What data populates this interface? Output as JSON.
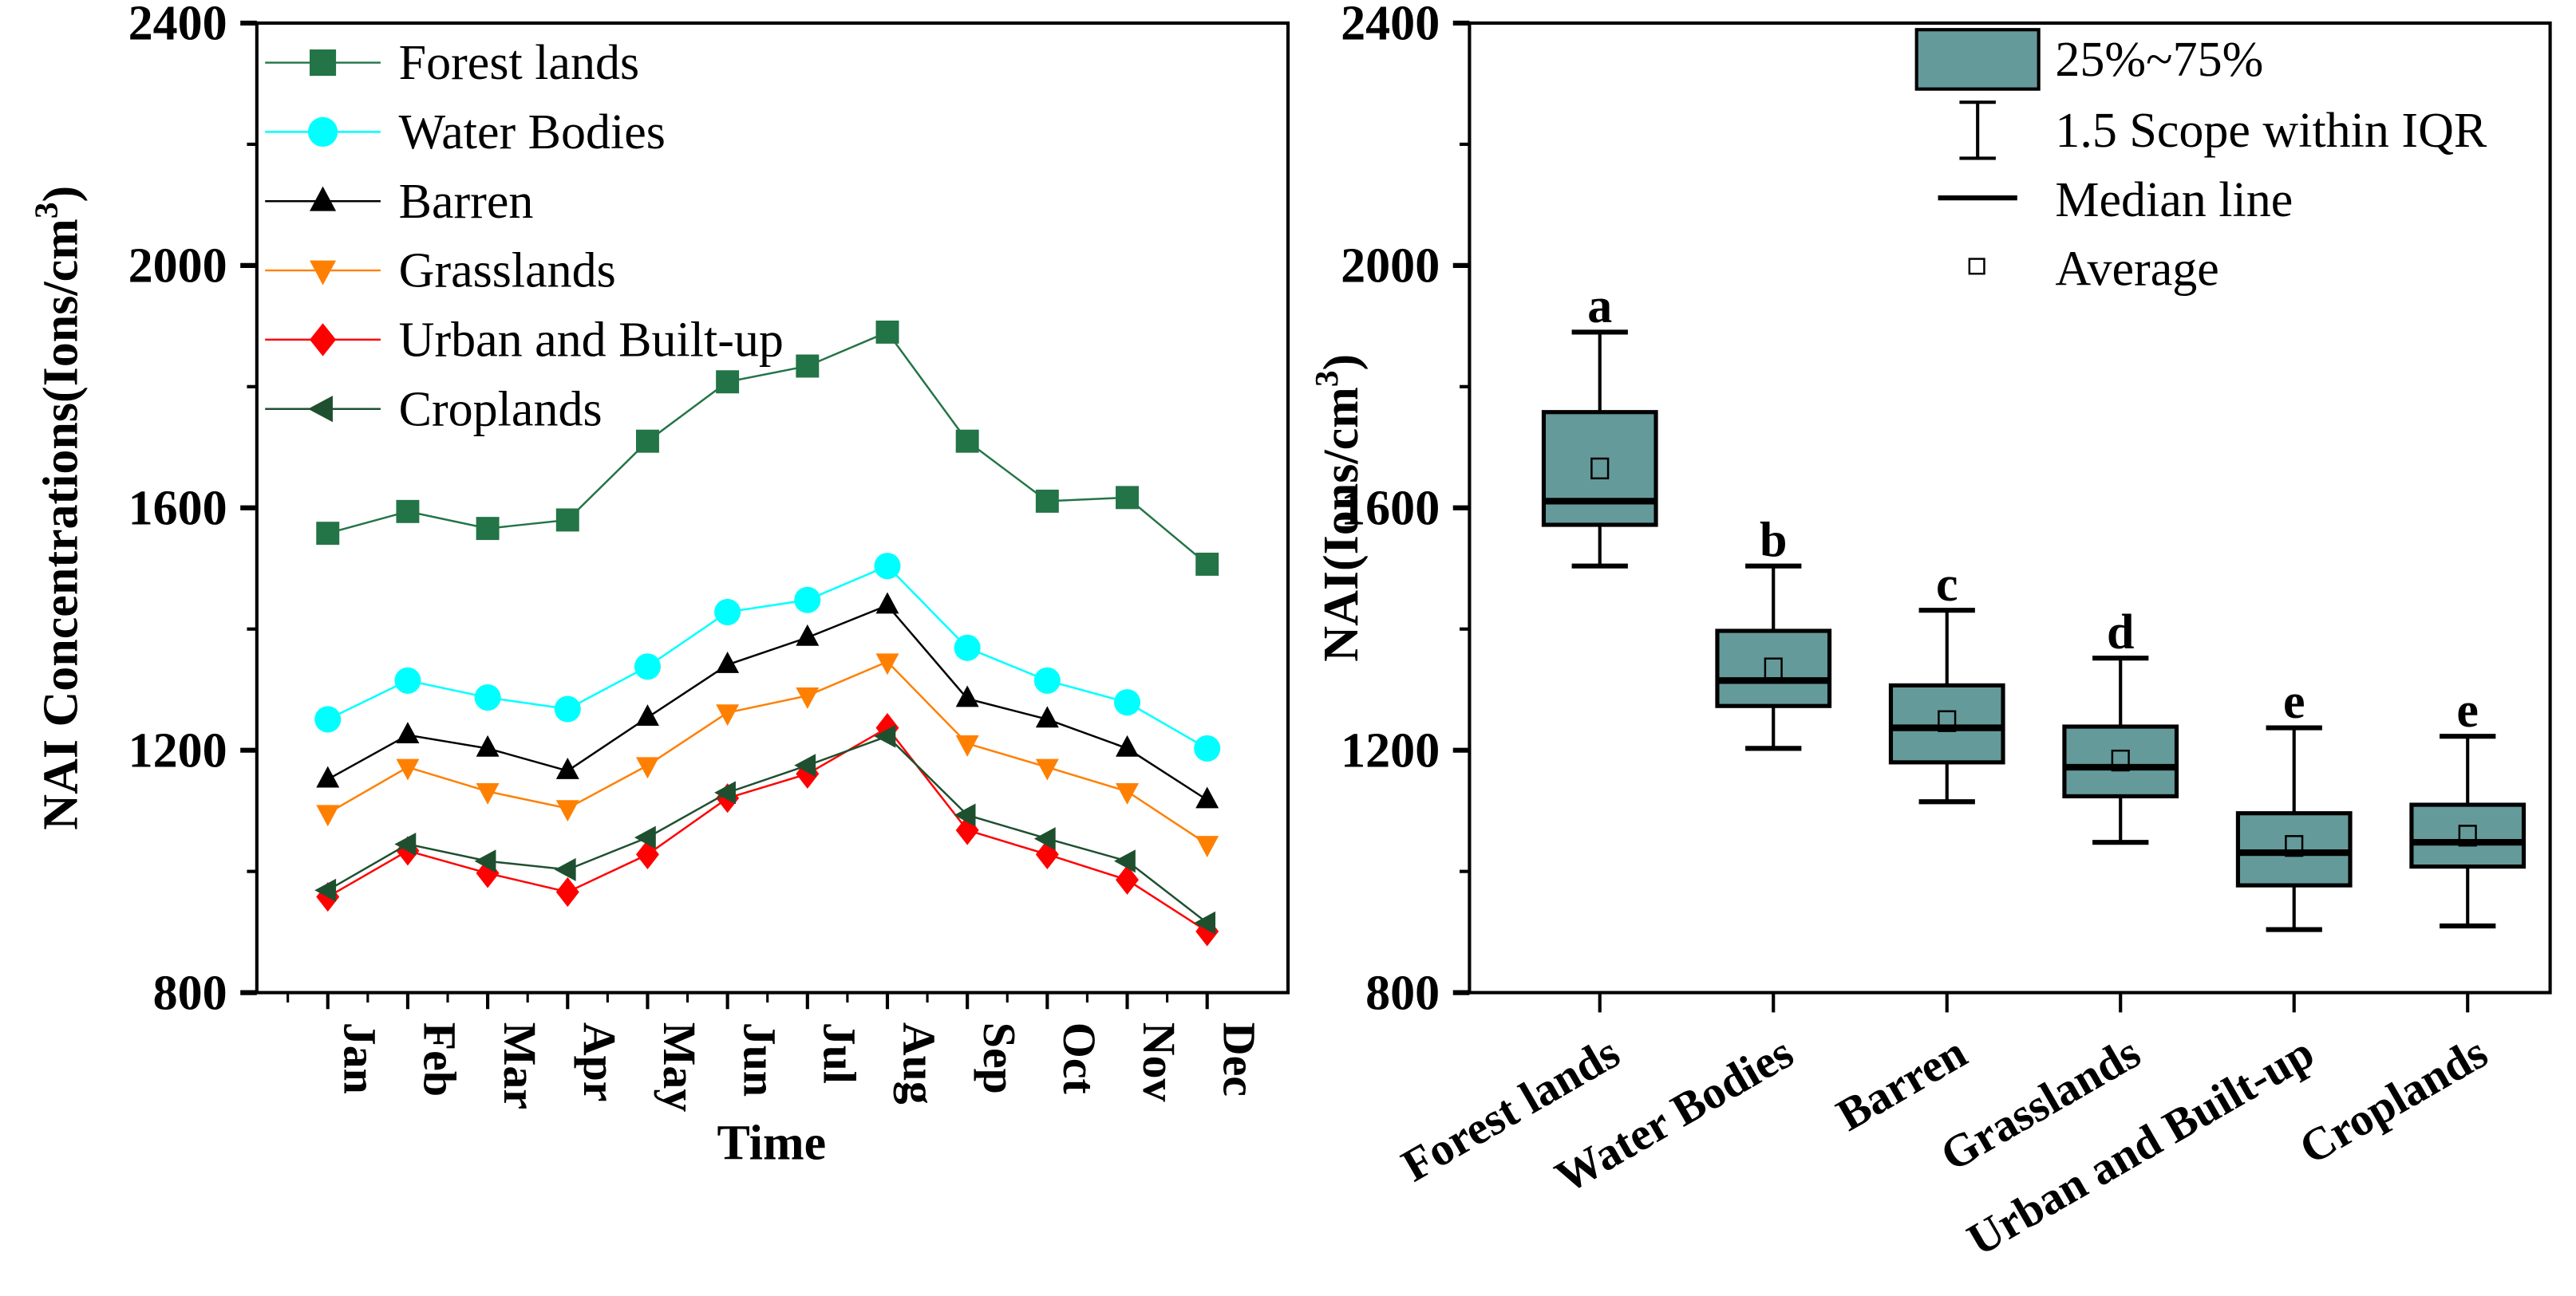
{
  "chart_data": [
    {
      "type": "line",
      "xlabel": "Time",
      "ylabel": "NAI Concentrations(Ions/cm3)",
      "ylabel_main": "NAI Concentrations(Ions/cm",
      "ylabel_sup": "3",
      "ylabel_end": ")",
      "ylim": [
        800,
        2400
      ],
      "yticks": [
        "800",
        "1200",
        "1600",
        "2000",
        "2400"
      ],
      "categories": [
        "Jan",
        "Feb",
        "Mar",
        "Apr",
        "May",
        "Jun",
        "Jul",
        "Aug",
        "Sep",
        "Oct",
        "Nov",
        "Dec"
      ],
      "legend_position": "top-left",
      "series": [
        {
          "name": "Forest lands",
          "color": "#237447",
          "marker": "square",
          "values": [
            1558,
            1594,
            1566,
            1580,
            1710,
            1808,
            1834,
            1890,
            1710,
            1611,
            1617,
            1507
          ]
        },
        {
          "name": "Water Bodies",
          "color": "#00FFFF",
          "marker": "circle",
          "values": [
            1251,
            1315,
            1287,
            1268,
            1338,
            1428,
            1448,
            1504,
            1369,
            1315,
            1279,
            1203
          ]
        },
        {
          "name": "Barren",
          "color": "#000000",
          "marker": "triangle-up",
          "values": [
            1152,
            1225,
            1203,
            1166,
            1254,
            1341,
            1386,
            1439,
            1285,
            1251,
            1203,
            1118
          ]
        },
        {
          "name": "Grasslands",
          "color": "#FF8000",
          "marker": "triangle-down",
          "values": [
            1096,
            1172,
            1132,
            1104,
            1175,
            1262,
            1290,
            1346,
            1211,
            1172,
            1132,
            1045
          ]
        },
        {
          "name": "Urban and Built-up",
          "color": "#FF0000",
          "marker": "diamond",
          "values": [
            958,
            1034,
            997,
            966,
            1028,
            1121,
            1161,
            1237,
            1068,
            1028,
            986,
            901
          ]
        },
        {
          "name": "Croplands",
          "color": "#1E5030",
          "marker": "triangle-left",
          "values": [
            969,
            1045,
            1017,
            1003,
            1056,
            1130,
            1175,
            1223,
            1093,
            1054,
            1017,
            915
          ]
        }
      ]
    },
    {
      "type": "box",
      "ylabel": "NAI(Ions/cm3)",
      "ylabel_main": "NAI(Ions/cm",
      "ylabel_sup": "3",
      "ylabel_end": ")",
      "ylim": [
        800,
        2400
      ],
      "yticks": [
        "800",
        "1200",
        "1600",
        "2000",
        "2400"
      ],
      "box_color": "#659A9A",
      "legend_position": "top-right",
      "legend": [
        "25%~75%",
        "1.5 Scope within IQR",
        "Median line",
        "Average"
      ],
      "categories": [
        "Forest lands",
        "Water Bodies",
        "Barren",
        "Grasslands",
        "Urban and Built-up",
        "Croplands"
      ],
      "boxes": [
        {
          "min": 1504,
          "q1": 1572,
          "median": 1611,
          "q3": 1758,
          "max": 1890,
          "mean": 1665,
          "letter": "a"
        },
        {
          "min": 1203,
          "q1": 1273,
          "median": 1315,
          "q3": 1397,
          "max": 1504,
          "mean": 1335,
          "letter": "b"
        },
        {
          "min": 1115,
          "q1": 1180,
          "median": 1237,
          "q3": 1307,
          "max": 1431,
          "mean": 1248,
          "letter": "c"
        },
        {
          "min": 1048,
          "q1": 1124,
          "median": 1172,
          "q3": 1239,
          "max": 1352,
          "mean": 1183,
          "letter": "d"
        },
        {
          "min": 904,
          "q1": 977,
          "median": 1031,
          "q3": 1096,
          "max": 1237,
          "mean": 1042,
          "letter": "e"
        },
        {
          "min": 910,
          "q1": 1008,
          "median": 1048,
          "q3": 1110,
          "max": 1223,
          "mean": 1059,
          "letter": "e"
        }
      ]
    }
  ]
}
